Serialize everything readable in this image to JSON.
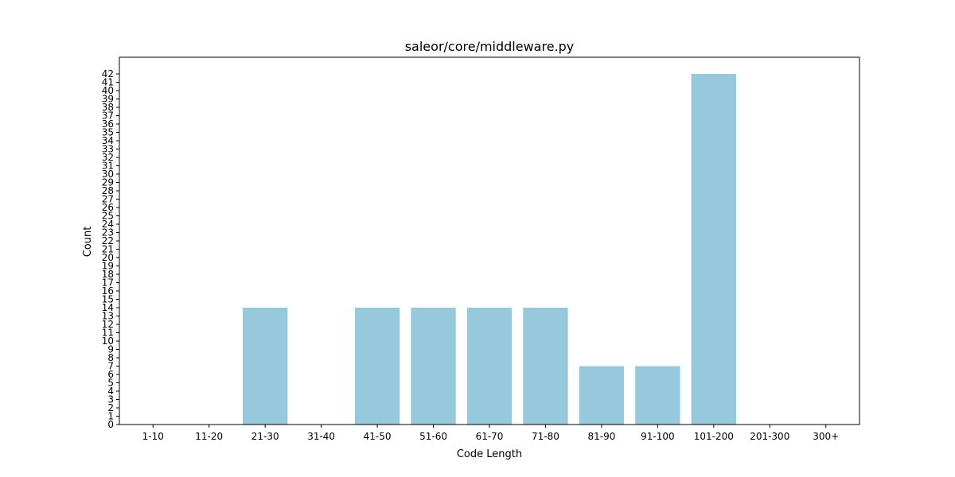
{
  "chart_data": {
    "type": "bar",
    "title": "saleor/core/middleware.py",
    "xlabel": "Code Length",
    "ylabel": "Count",
    "categories": [
      "1-10",
      "11-20",
      "21-30",
      "31-40",
      "41-50",
      "51-60",
      "61-70",
      "71-80",
      "81-90",
      "91-100",
      "101-200",
      "201-300",
      "300+"
    ],
    "values": [
      0,
      0,
      14,
      0,
      14,
      14,
      14,
      14,
      7,
      7,
      42,
      0,
      0
    ],
    "ylim": [
      0,
      44
    ],
    "yticks": [
      0,
      1,
      2,
      3,
      4,
      5,
      6,
      7,
      8,
      9,
      10,
      11,
      12,
      13,
      14,
      15,
      16,
      17,
      18,
      19,
      20,
      21,
      22,
      23,
      24,
      25,
      26,
      27,
      28,
      29,
      30,
      31,
      32,
      33,
      34,
      35,
      36,
      37,
      38,
      39,
      40,
      41,
      42
    ],
    "bar_color": "#96c9dc",
    "grid": false,
    "legend": "none"
  }
}
